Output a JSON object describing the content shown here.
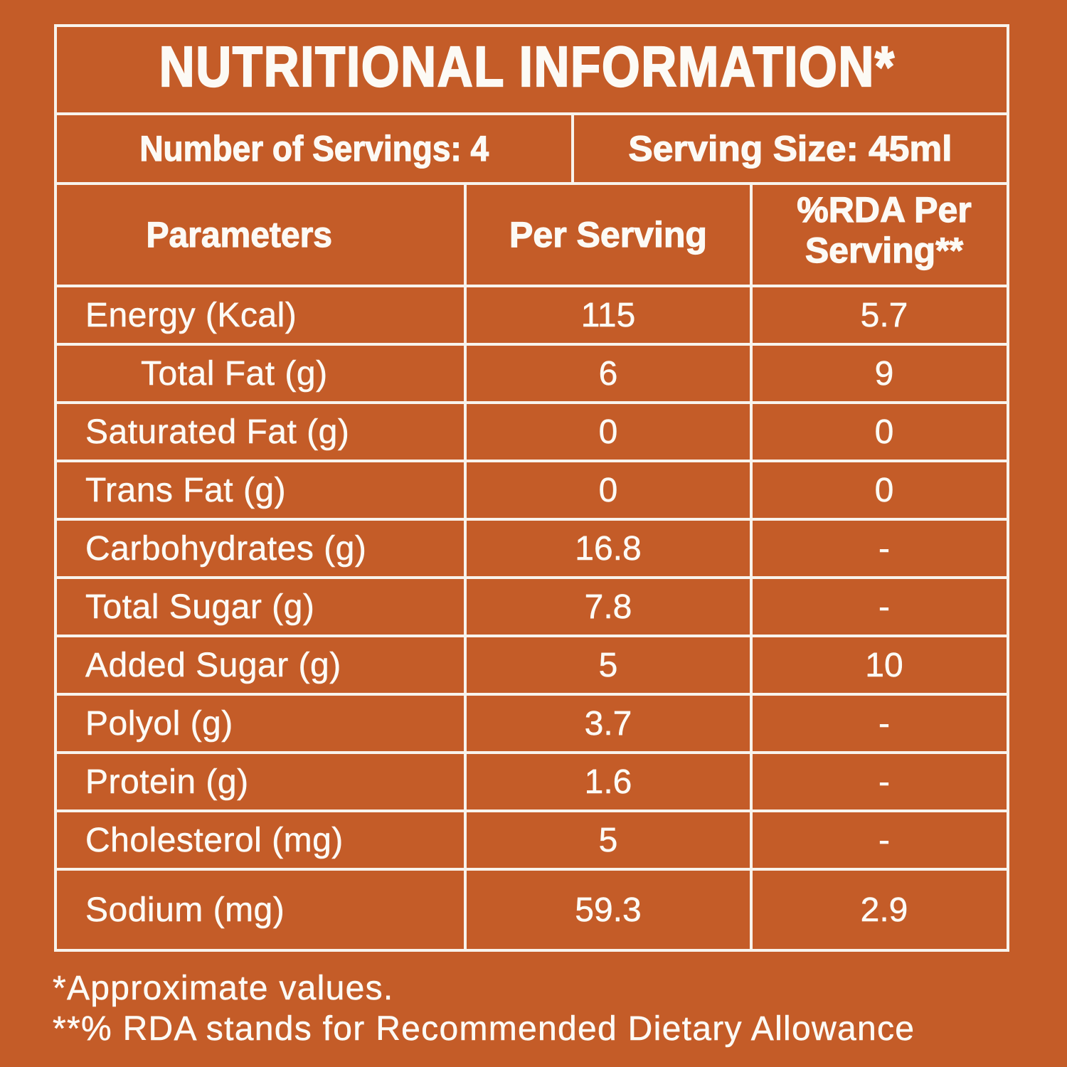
{
  "colors": {
    "background": "#c45c28",
    "grid_line": "#f8f3ec",
    "text": "#fcfaf5"
  },
  "title": "NUTRITIONAL INFORMATION*",
  "servings": {
    "number_of_servings": "Number of Servings: 4",
    "serving_size": "Serving Size: 45ml"
  },
  "columns": {
    "parameters": "Parameters",
    "per_serving": "Per Serving",
    "rda_per_serving": "%RDA Per Serving**"
  },
  "rows": [
    {
      "label": "Energy (Kcal)",
      "per_serving": "115",
      "rda": "5.7"
    },
    {
      "label": "Total Fat (g)",
      "per_serving": "6",
      "rda": "9"
    },
    {
      "label": "Saturated Fat (g)",
      "per_serving": "0",
      "rda": "0"
    },
    {
      "label": "Trans Fat (g)",
      "per_serving": "0",
      "rda": "0"
    },
    {
      "label": "Carbohydrates (g)",
      "per_serving": "16.8",
      "rda": "-"
    },
    {
      "label": "Total Sugar (g)",
      "per_serving": "7.8",
      "rda": "-"
    },
    {
      "label": "Added Sugar (g)",
      "per_serving": "5",
      "rda": "10"
    },
    {
      "label": "Polyol (g)",
      "per_serving": "3.7",
      "rda": "-"
    },
    {
      "label": "Protein (g)",
      "per_serving": "1.6",
      "rda": "-"
    },
    {
      "label": "Cholesterol (mg)",
      "per_serving": "5",
      "rda": "-"
    },
    {
      "label": "Sodium (mg)",
      "per_serving": "59.3",
      "rda": "2.9"
    }
  ],
  "footnotes": {
    "approximate": "*Approximate values.",
    "rda_definition": "**% RDA stands for Recommended Dietary Allowance"
  },
  "chart_data": {
    "type": "table",
    "title": "NUTRITIONAL INFORMATION*",
    "number_of_servings": 4,
    "serving_size_ml": 45,
    "columns": [
      "Parameters",
      "Per Serving",
      "%RDA Per Serving**"
    ],
    "rows": [
      [
        "Energy (Kcal)",
        115,
        5.7
      ],
      [
        "Total Fat (g)",
        6,
        9
      ],
      [
        "Saturated Fat (g)",
        0,
        0
      ],
      [
        "Trans Fat (g)",
        0,
        0
      ],
      [
        "Carbohydrates (g)",
        16.8,
        null
      ],
      [
        "Total Sugar (g)",
        7.8,
        null
      ],
      [
        "Added Sugar (g)",
        5,
        10
      ],
      [
        "Polyol (g)",
        3.7,
        null
      ],
      [
        "Protein (g)",
        1.6,
        null
      ],
      [
        "Cholesterol (mg)",
        5,
        null
      ],
      [
        "Sodium (mg)",
        59.3,
        2.9
      ]
    ]
  }
}
